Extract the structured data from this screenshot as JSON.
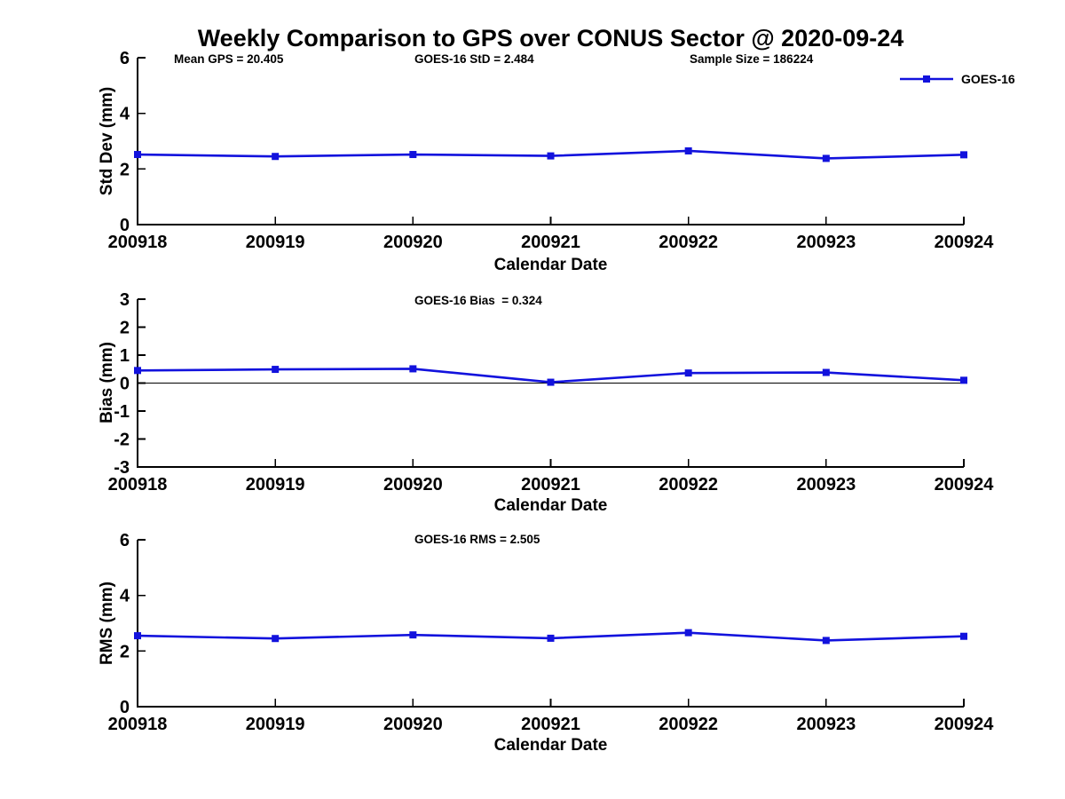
{
  "title": "Weekly Comparison to GPS over CONUS Sector @ 2020-09-24",
  "legend": {
    "label": "GOES-16"
  },
  "series_color": "#1212dd",
  "axis_color": "#000000",
  "chart_data": [
    {
      "type": "line",
      "name": "std-dev",
      "x_categories": [
        "200918",
        "200919",
        "200920",
        "200921",
        "200922",
        "200923",
        "200924"
      ],
      "series": [
        {
          "name": "GOES-16",
          "color": "#1212dd",
          "values": [
            2.52,
            2.45,
            2.52,
            2.47,
            2.65,
            2.38,
            2.51
          ]
        }
      ],
      "xlabel": "Calendar Date",
      "ylabel": "Std Dev (mm)",
      "ylim": [
        0,
        6
      ],
      "yticks": [
        0,
        2,
        4,
        6
      ],
      "zero_line": false,
      "grid": false,
      "legend_position": "top-right",
      "annotations": [
        "Mean GPS = 20.405",
        "GOES-16 StD = 2.484",
        "Sample Size = 186224"
      ]
    },
    {
      "type": "line",
      "name": "bias",
      "x_categories": [
        "200918",
        "200919",
        "200920",
        "200921",
        "200922",
        "200923",
        "200924"
      ],
      "series": [
        {
          "name": "GOES-16",
          "color": "#1212dd",
          "values": [
            0.45,
            0.49,
            0.51,
            0.03,
            0.36,
            0.38,
            0.1
          ]
        }
      ],
      "xlabel": "Calendar Date",
      "ylabel": "Bias (mm)",
      "ylim": [
        -3,
        3
      ],
      "yticks": [
        -3,
        -2,
        -1,
        0,
        1,
        2,
        3
      ],
      "zero_line": true,
      "grid": false,
      "annotations": [
        "GOES-16 Bias  = 0.324"
      ]
    },
    {
      "type": "line",
      "name": "rms",
      "x_categories": [
        "200918",
        "200919",
        "200920",
        "200921",
        "200922",
        "200923",
        "200924"
      ],
      "series": [
        {
          "name": "GOES-16",
          "color": "#1212dd",
          "values": [
            2.55,
            2.45,
            2.58,
            2.46,
            2.66,
            2.38,
            2.53
          ]
        }
      ],
      "xlabel": "Calendar Date",
      "ylabel": "RMS (mm)",
      "ylim": [
        0,
        6
      ],
      "yticks": [
        0,
        2,
        4,
        6
      ],
      "zero_line": false,
      "grid": false,
      "annotations": [
        "GOES-16 RMS = 2.505"
      ]
    }
  ]
}
